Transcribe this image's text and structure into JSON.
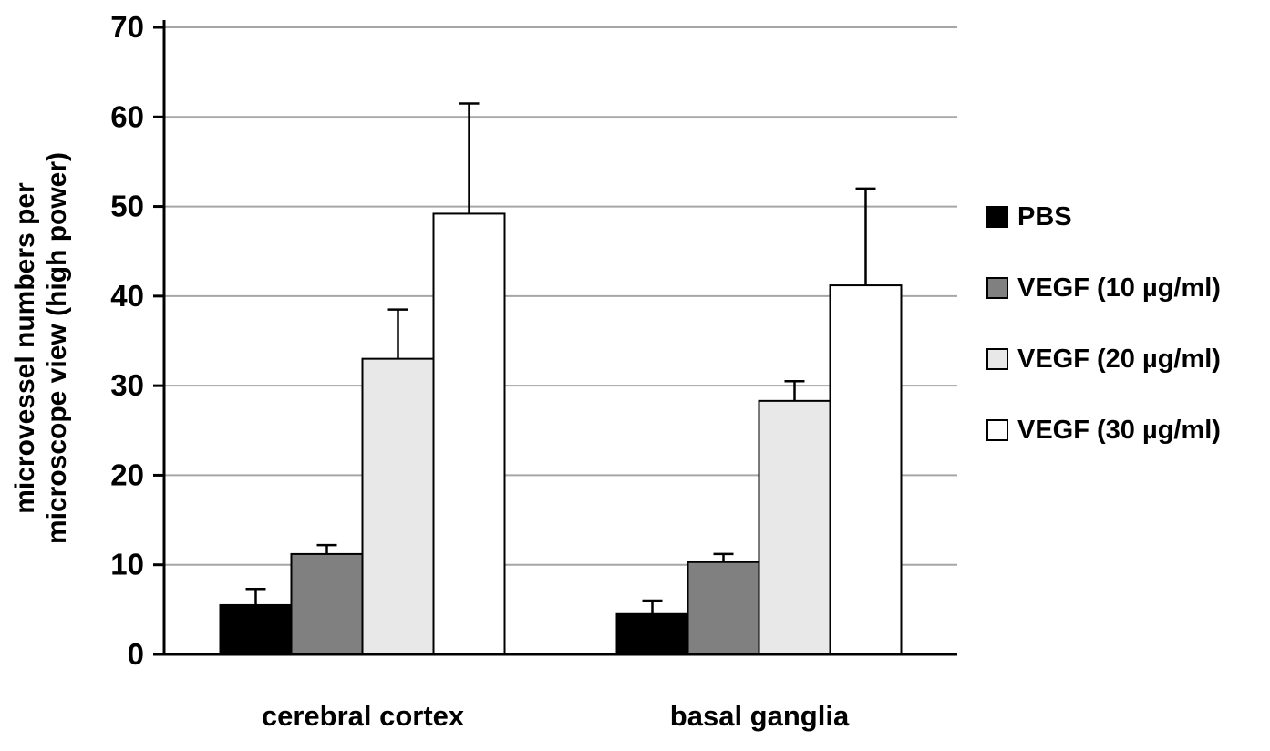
{
  "chart_data": {
    "type": "bar",
    "title": "",
    "xlabel": "",
    "ylabel": "microvessel numbers per microscope view (high power)",
    "ylabel_lines": [
      "microvessel numbers per",
      "microscope view (high power)"
    ],
    "ylim": [
      0,
      70
    ],
    "yticks": [
      0,
      10,
      20,
      30,
      40,
      50,
      60,
      70
    ],
    "grid": true,
    "legend_position": "right",
    "categories": [
      "cerebral cortex",
      "basal ganglia"
    ],
    "series": [
      {
        "name": "PBS",
        "color": "#000000",
        "border": "#000000",
        "values": [
          5.5,
          4.5
        ],
        "errors_up": [
          1.8,
          1.5
        ]
      },
      {
        "name": "VEGF (10 µg/ml)",
        "color": "#808080",
        "border": "#000000",
        "values": [
          11.2,
          10.3
        ],
        "errors_up": [
          1.0,
          0.9
        ]
      },
      {
        "name": "VEGF (20 µg/ml)",
        "color": "#e8e8e8",
        "border": "#000000",
        "values": [
          33.0,
          28.3
        ],
        "errors_up": [
          5.5,
          2.2
        ]
      },
      {
        "name": "VEGF (30 µg/ml)",
        "color": "#ffffff",
        "border": "#000000",
        "values": [
          49.2,
          41.2
        ],
        "errors_up": [
          12.3,
          10.8
        ]
      }
    ],
    "style": {
      "gridline_color": "#a6a6a6",
      "axis_color": "#000000",
      "tick_label_color": "#000000"
    }
  }
}
